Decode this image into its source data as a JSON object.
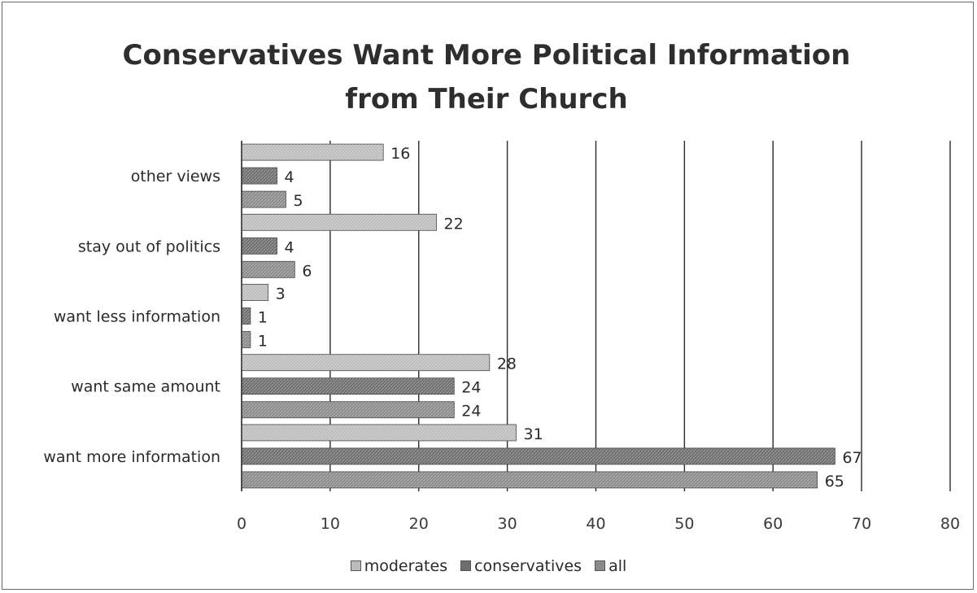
{
  "chart_data": {
    "type": "bar",
    "orientation": "horizontal",
    "title_lines": [
      "Conservatives Want More Political Information",
      "from Their Church"
    ],
    "categories": [
      "other views",
      "stay out of politics",
      "want less information",
      "want same amount",
      "want more information"
    ],
    "series": [
      {
        "name": "moderates",
        "values": [
          16,
          22,
          3,
          28,
          31
        ],
        "color": "#bcbcbc"
      },
      {
        "name": "conservatives",
        "values": [
          4,
          4,
          1,
          24,
          67
        ],
        "color": "#6e6e6e"
      },
      {
        "name": "all",
        "values": [
          5,
          6,
          1,
          24,
          65
        ],
        "color": "#8a8a8a"
      }
    ],
    "xlim": [
      0,
      80
    ],
    "xticks": [
      0,
      10,
      20,
      30,
      40,
      50,
      60,
      70,
      80
    ],
    "grid": "vertical",
    "legend": "bottom"
  }
}
